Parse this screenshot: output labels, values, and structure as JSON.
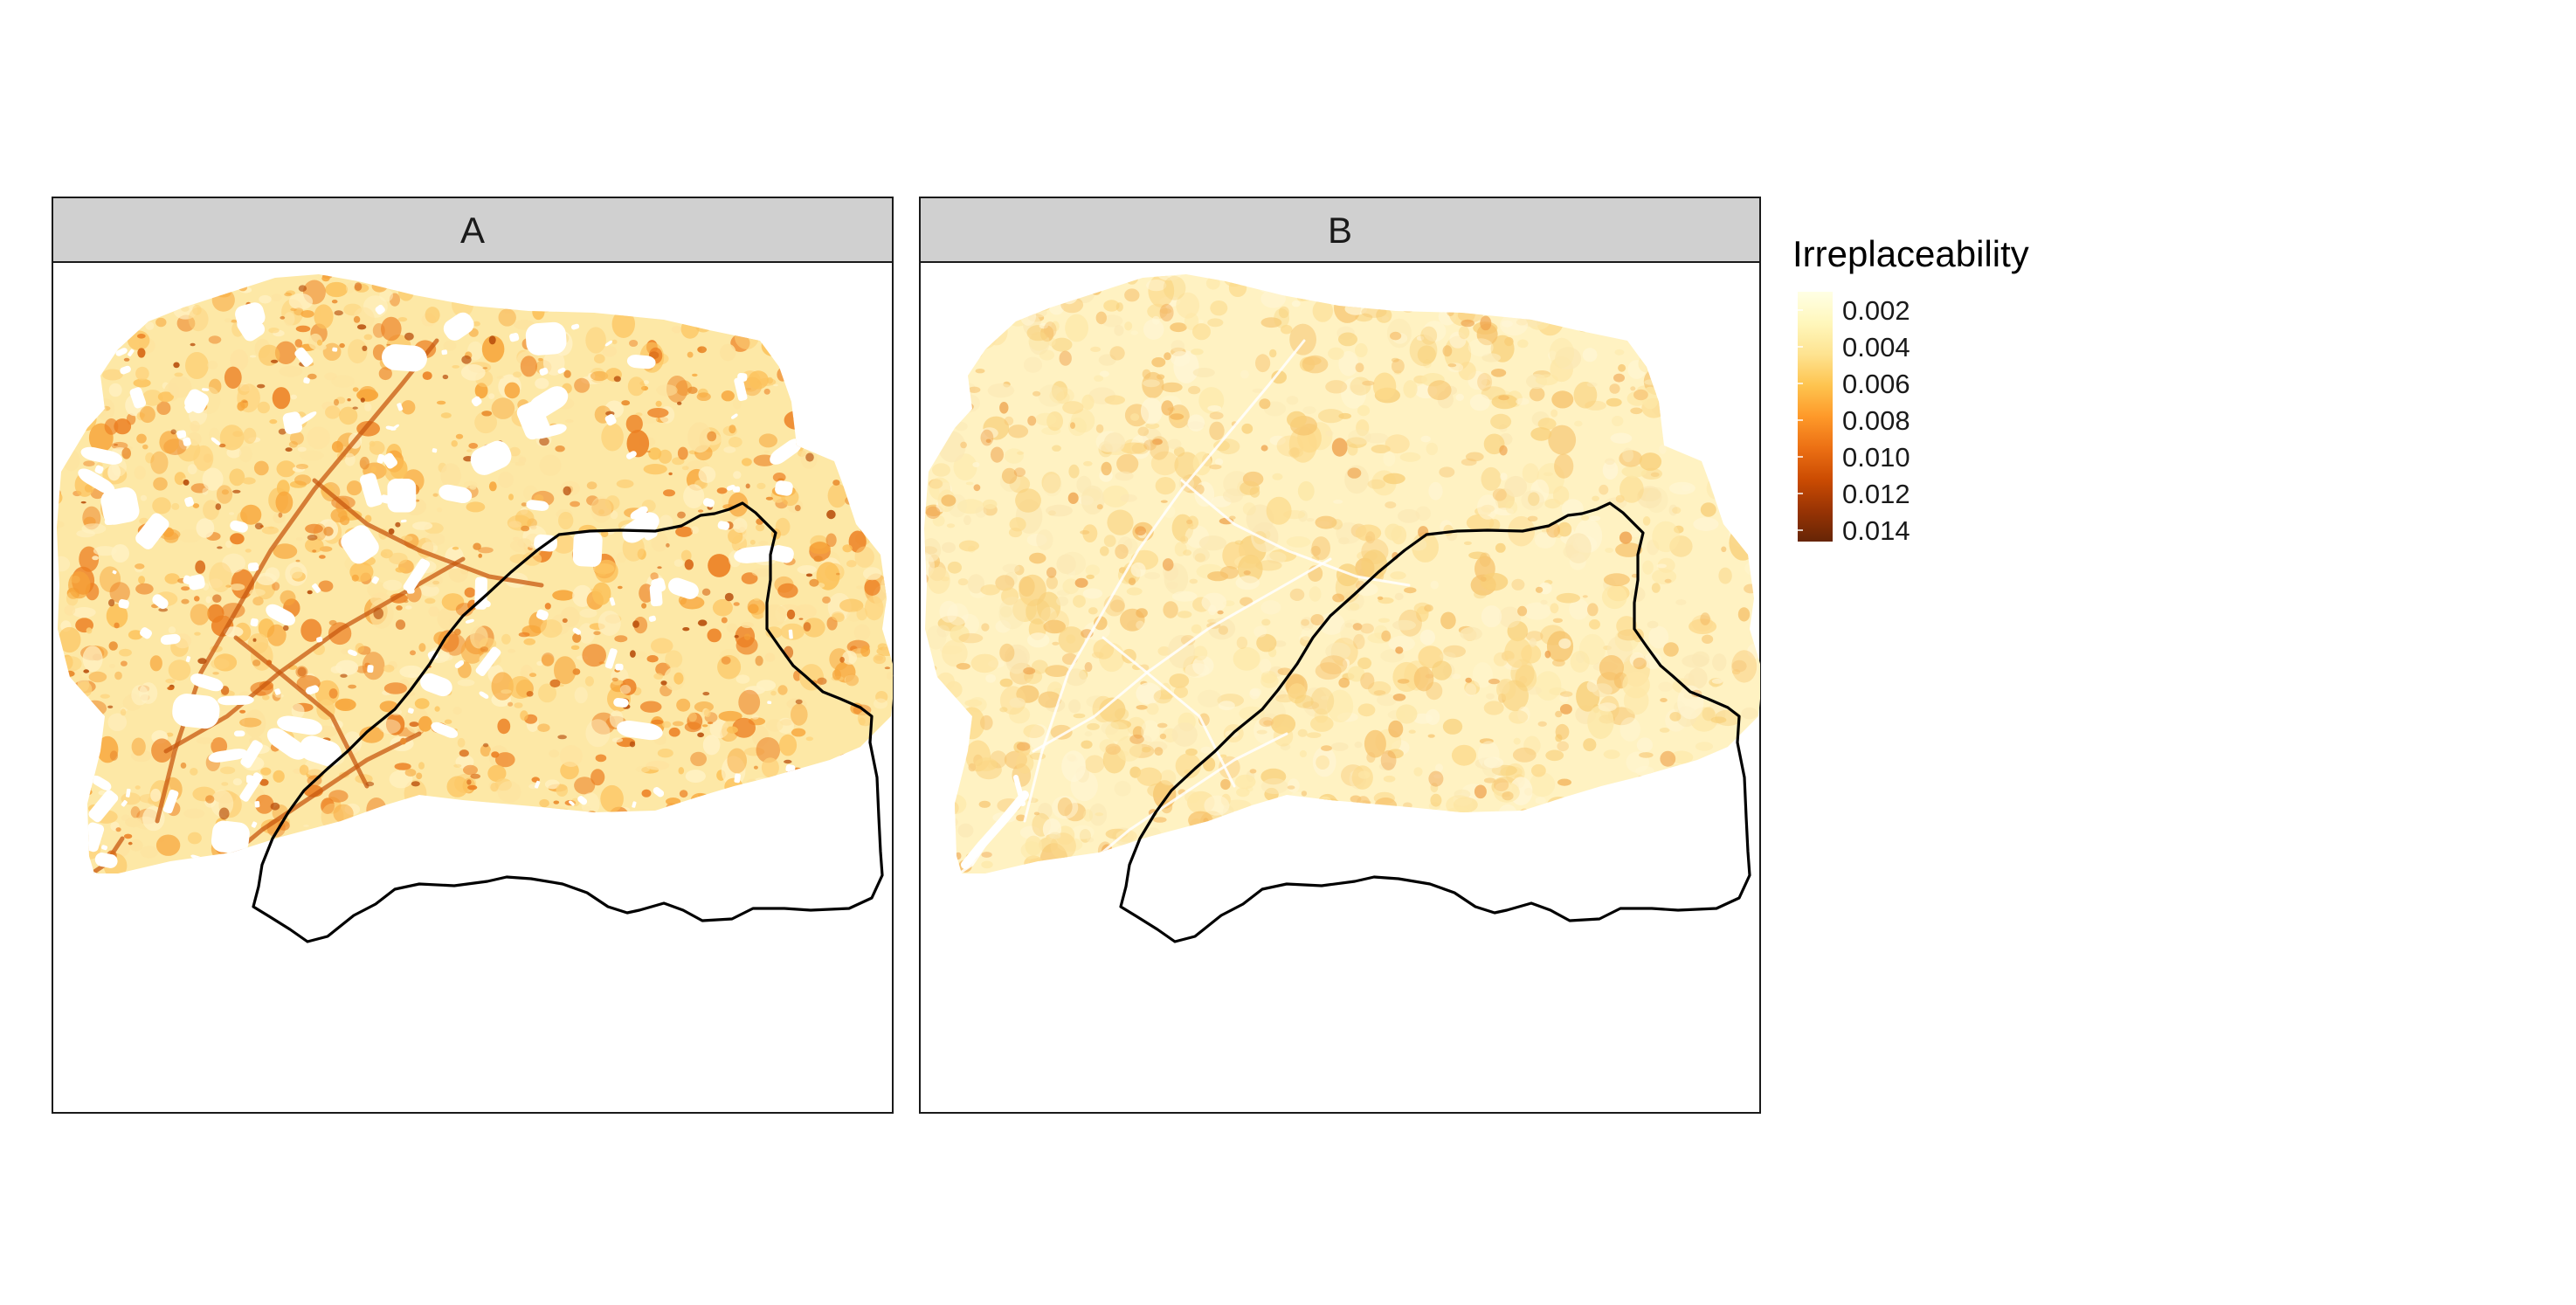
{
  "panels": [
    {
      "label": "A"
    },
    {
      "label": "B"
    }
  ],
  "legend": {
    "title": "Irreplaceability",
    "labels": [
      "0.002",
      "0.004",
      "0.006",
      "0.008",
      "0.010",
      "0.012",
      "0.014"
    ],
    "colors": [
      "#ffffe5",
      "#fff7bc",
      "#fee391",
      "#fec44f",
      "#fe9929",
      "#ec7014",
      "#cc4c02",
      "#993404",
      "#662506"
    ]
  },
  "colors": {
    "strip_fill": "#d0d0d0",
    "panel_border": "#1a1a1a",
    "watershed_outline": "#000000"
  }
}
